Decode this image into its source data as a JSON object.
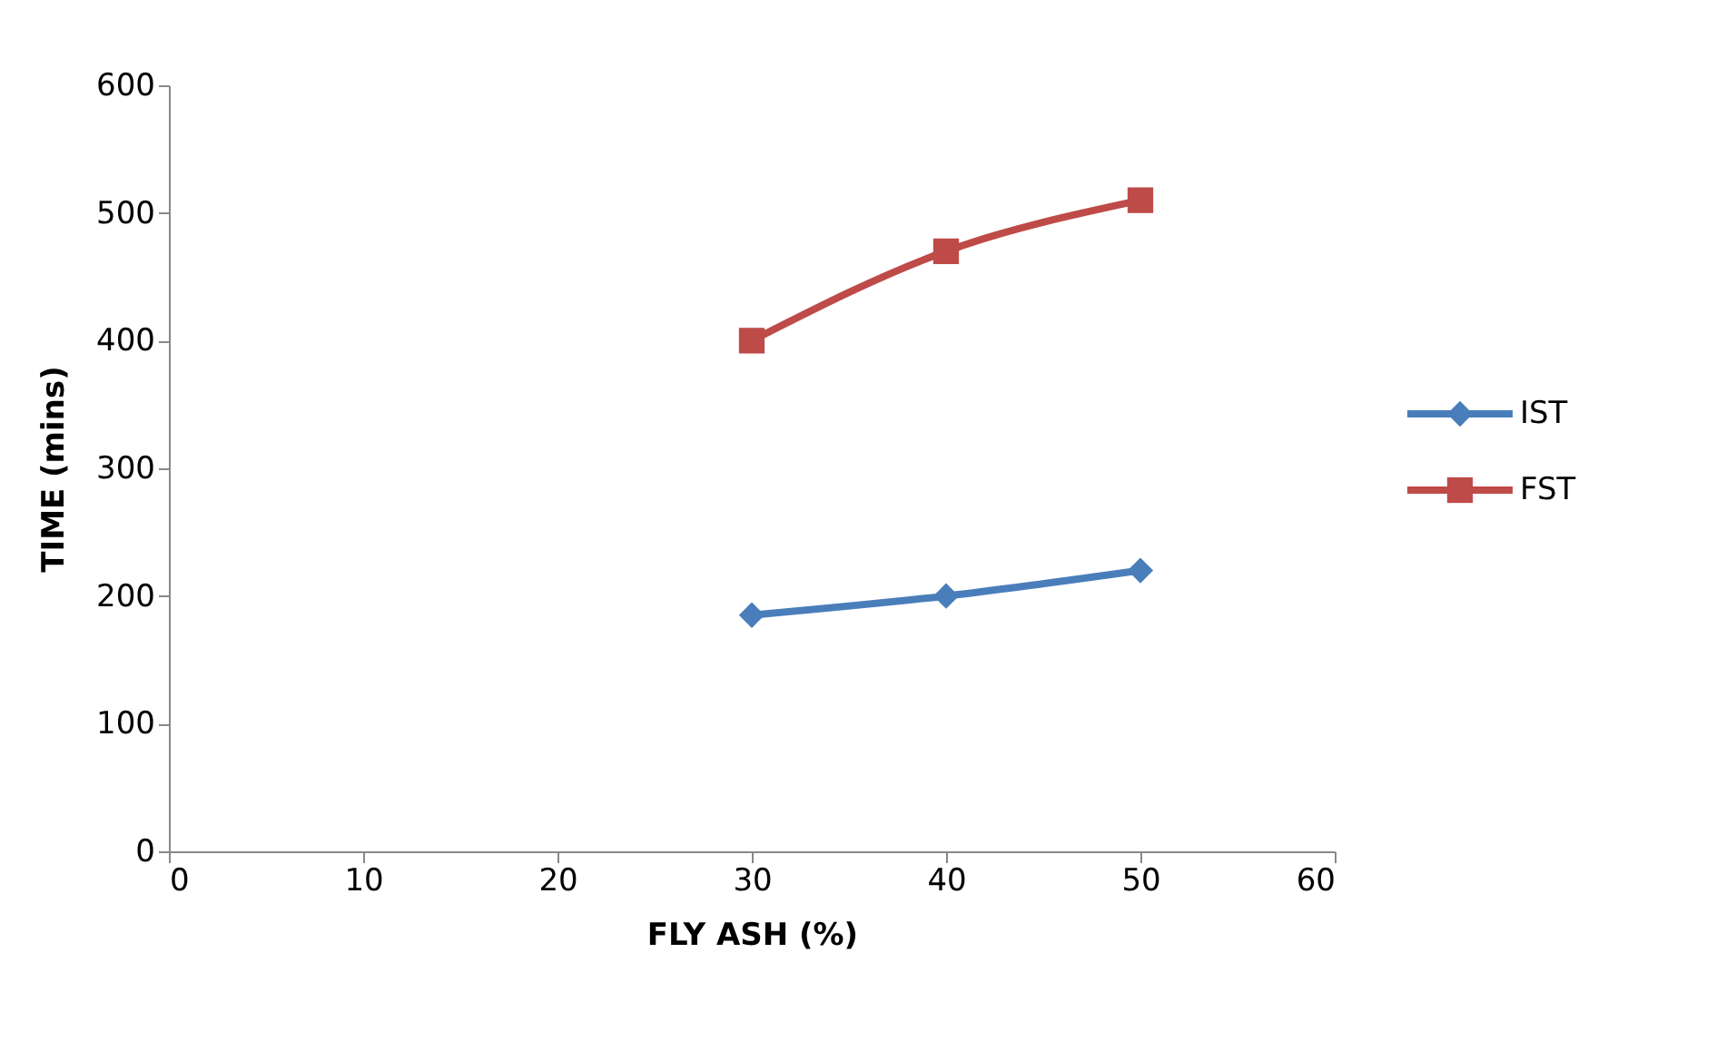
{
  "chart_data": {
    "type": "line",
    "xlabel": "FLY ASH (%)",
    "ylabel": "TIME (mins)",
    "x": [
      30,
      40,
      50
    ],
    "series": [
      {
        "name": "IST",
        "color": "#4a7ebb",
        "values": [
          185,
          200,
          220
        ],
        "marker": "diamond"
      },
      {
        "name": "FST",
        "color": "#be4b48",
        "values": [
          400,
          470,
          510
        ],
        "marker": "square"
      }
    ],
    "xlim": [
      0,
      60
    ],
    "xticks": [
      0,
      10,
      20,
      30,
      40,
      50,
      60
    ],
    "ylim": [
      0,
      600
    ],
    "yticks": [
      0,
      100,
      200,
      300,
      400,
      500,
      600
    ],
    "grid": false,
    "legend": "right",
    "line_style": "solid"
  }
}
